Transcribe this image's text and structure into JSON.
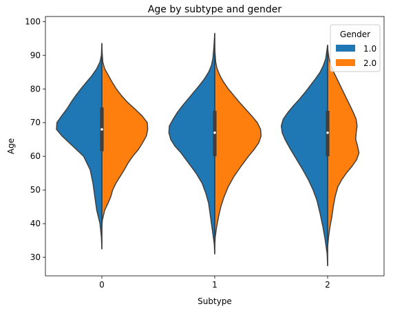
{
  "chart_data": {
    "type": "violin",
    "title": "Age by subtype and gender",
    "xlabel": "Subtype",
    "ylabel": "Age",
    "categories": [
      "0",
      "1",
      "2"
    ],
    "ylim": [
      24.5,
      101.5
    ],
    "yticks": [
      30,
      40,
      50,
      60,
      70,
      80,
      90,
      100
    ],
    "grid": false,
    "split": true,
    "legend": {
      "title": "Gender",
      "placement": "top-right"
    },
    "series": [
      {
        "name": "1.0",
        "color": "#1f77b4"
      },
      {
        "name": "2.0",
        "color": "#ff7f0e"
      }
    ],
    "violins": [
      {
        "category": "0",
        "left_density": [
          [
            32.5,
            0
          ],
          [
            36,
            0.01
          ],
          [
            40,
            0.04
          ],
          [
            44,
            0.11
          ],
          [
            48,
            0.15
          ],
          [
            52,
            0.19
          ],
          [
            56,
            0.25
          ],
          [
            60,
            0.39
          ],
          [
            63,
            0.62
          ],
          [
            66,
            0.85
          ],
          [
            68,
            0.97
          ],
          [
            70,
            0.96
          ],
          [
            72,
            0.86
          ],
          [
            74,
            0.75
          ],
          [
            76,
            0.66
          ],
          [
            78,
            0.56
          ],
          [
            80,
            0.45
          ],
          [
            82,
            0.33
          ],
          [
            84,
            0.21
          ],
          [
            86,
            0.11
          ],
          [
            88,
            0.04
          ],
          [
            90,
            0.01
          ],
          [
            93.5,
            0
          ]
        ],
        "right_density": [
          [
            39,
            0
          ],
          [
            41,
            0.01
          ],
          [
            44,
            0.06
          ],
          [
            46,
            0.13
          ],
          [
            48,
            0.19
          ],
          [
            50,
            0.23
          ],
          [
            52,
            0.3
          ],
          [
            54,
            0.39
          ],
          [
            56,
            0.48
          ],
          [
            58,
            0.56
          ],
          [
            60,
            0.66
          ],
          [
            62,
            0.78
          ],
          [
            64,
            0.87
          ],
          [
            66,
            0.95
          ],
          [
            68,
            0.98
          ],
          [
            70,
            0.97
          ],
          [
            72,
            0.86
          ],
          [
            74,
            0.71
          ],
          [
            76,
            0.55
          ],
          [
            78,
            0.42
          ],
          [
            80,
            0.31
          ],
          [
            82,
            0.22
          ],
          [
            84,
            0.14
          ],
          [
            86,
            0.06
          ],
          [
            88,
            0.02
          ],
          [
            90,
            0.01
          ],
          [
            92.5,
            0
          ]
        ],
        "q1": 61.5,
        "median": 68,
        "q3": 74.5
      },
      {
        "category": "1",
        "left_density": [
          [
            31,
            0
          ],
          [
            34,
            0.01
          ],
          [
            37,
            0.04
          ],
          [
            40,
            0.07
          ],
          [
            43,
            0.1
          ],
          [
            46,
            0.13
          ],
          [
            49,
            0.19
          ],
          [
            52,
            0.27
          ],
          [
            55,
            0.4
          ],
          [
            58,
            0.56
          ],
          [
            61,
            0.72
          ],
          [
            63,
            0.85
          ],
          [
            65,
            0.94
          ],
          [
            67,
            0.98
          ],
          [
            69,
            0.97
          ],
          [
            71,
            0.89
          ],
          [
            73,
            0.8
          ],
          [
            75,
            0.69
          ],
          [
            77,
            0.57
          ],
          [
            79,
            0.45
          ],
          [
            81,
            0.33
          ],
          [
            83,
            0.22
          ],
          [
            85,
            0.13
          ],
          [
            87,
            0.07
          ],
          [
            89,
            0.04
          ],
          [
            92,
            0.02
          ],
          [
            96.5,
            0
          ]
        ],
        "right_density": [
          [
            33,
            0
          ],
          [
            36,
            0.01
          ],
          [
            39,
            0.04
          ],
          [
            42,
            0.08
          ],
          [
            45,
            0.13
          ],
          [
            48,
            0.2
          ],
          [
            51,
            0.29
          ],
          [
            54,
            0.41
          ],
          [
            57,
            0.56
          ],
          [
            60,
            0.72
          ],
          [
            62,
            0.84
          ],
          [
            64,
            0.94
          ],
          [
            66,
            0.99
          ],
          [
            68,
            0.98
          ],
          [
            70,
            0.91
          ],
          [
            72,
            0.79
          ],
          [
            74,
            0.66
          ],
          [
            76,
            0.53
          ],
          [
            78,
            0.41
          ],
          [
            80,
            0.29
          ],
          [
            82,
            0.19
          ],
          [
            84,
            0.11
          ],
          [
            86,
            0.05
          ],
          [
            88,
            0.02
          ],
          [
            90,
            0.01
          ],
          [
            92,
            0
          ]
        ],
        "q1": 60,
        "median": 67,
        "q3": 73.5
      },
      {
        "category": "2",
        "left_density": [
          [
            27.5,
            0
          ],
          [
            31,
            0.01
          ],
          [
            35,
            0.05
          ],
          [
            39,
            0.1
          ],
          [
            43,
            0.16
          ],
          [
            47,
            0.23
          ],
          [
            50,
            0.31
          ],
          [
            53,
            0.41
          ],
          [
            56,
            0.53
          ],
          [
            59,
            0.66
          ],
          [
            62,
            0.79
          ],
          [
            65,
            0.91
          ],
          [
            67,
            0.97
          ],
          [
            69,
            0.99
          ],
          [
            71,
            0.95
          ],
          [
            73,
            0.85
          ],
          [
            75,
            0.73
          ],
          [
            77,
            0.6
          ],
          [
            79,
            0.48
          ],
          [
            81,
            0.37
          ],
          [
            83,
            0.26
          ],
          [
            85,
            0.16
          ],
          [
            87,
            0.09
          ],
          [
            89,
            0.04
          ],
          [
            93,
            0
          ]
        ],
        "right_density": [
          [
            33,
            0
          ],
          [
            36,
            0.02
          ],
          [
            39,
            0.05
          ],
          [
            42,
            0.09
          ],
          [
            45,
            0.12
          ],
          [
            48,
            0.16
          ],
          [
            51,
            0.22
          ],
          [
            53,
            0.3
          ],
          [
            55,
            0.4
          ],
          [
            57,
            0.52
          ],
          [
            59,
            0.62
          ],
          [
            61,
            0.67
          ],
          [
            63,
            0.64
          ],
          [
            65,
            0.6
          ],
          [
            67,
            0.61
          ],
          [
            69,
            0.63
          ],
          [
            71,
            0.61
          ],
          [
            73,
            0.55
          ],
          [
            75,
            0.48
          ],
          [
            77,
            0.41
          ],
          [
            79,
            0.34
          ],
          [
            81,
            0.27
          ],
          [
            83,
            0.2
          ],
          [
            85,
            0.13
          ],
          [
            87,
            0.07
          ],
          [
            89,
            0.03
          ],
          [
            91,
            0.01
          ],
          [
            92.5,
            0
          ]
        ],
        "q1": 60,
        "median": 67,
        "q3": 73.5
      }
    ]
  }
}
